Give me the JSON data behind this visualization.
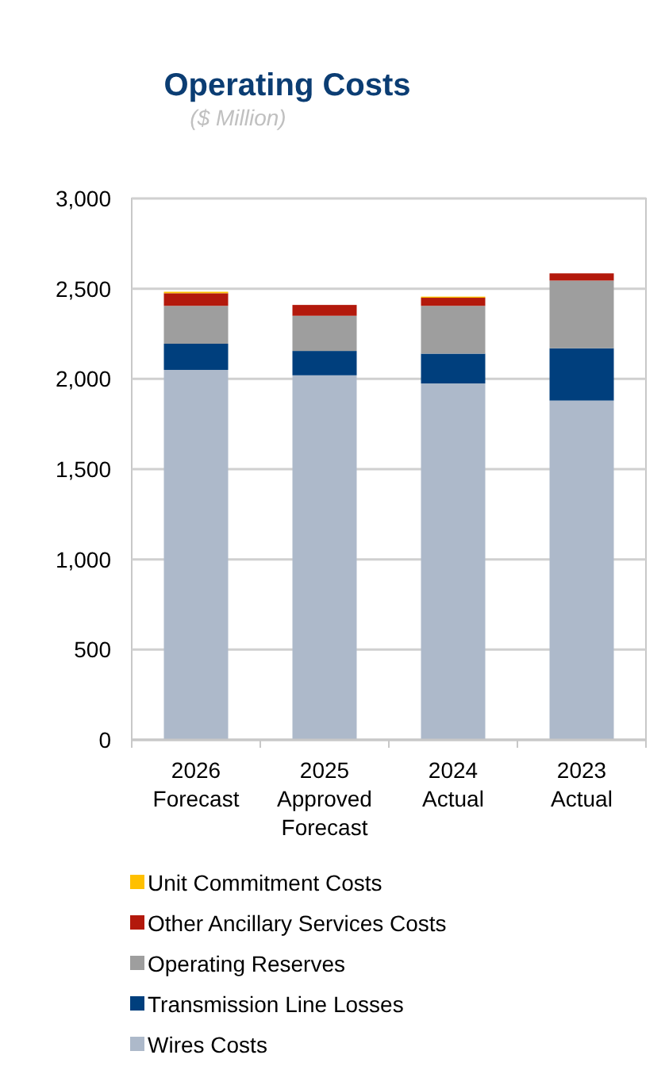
{
  "chart_data": {
    "type": "bar",
    "stacked": true,
    "title": "Operating Costs",
    "subtitle": "($ Million)",
    "categories": [
      "2026 Forecast",
      "2025 Approved Forecast",
      "2024 Actual",
      "2023 Actual"
    ],
    "series": [
      {
        "name": "Wires Costs",
        "color": "#adb9ca",
        "values": [
          2050,
          2020,
          1975,
          1880
        ]
      },
      {
        "name": "Transmission Line Losses",
        "color": "#003f7d",
        "values": [
          145,
          135,
          165,
          290
        ]
      },
      {
        "name": "Operating Reserves",
        "color": "#9e9e9e",
        "values": [
          210,
          195,
          265,
          375
        ]
      },
      {
        "name": "Other Ancillary Services Costs",
        "color": "#b3190c",
        "values": [
          70,
          60,
          45,
          40
        ]
      },
      {
        "name": "Unit Commitment Costs",
        "color": "#ffc000",
        "values": [
          8,
          0,
          6,
          0
        ]
      }
    ],
    "ylim": [
      0,
      3000
    ],
    "yticks": [
      0,
      {
        "value": 500,
        "label": "500"
      },
      {
        "value": 1000,
        "label": "1,000"
      },
      {
        "value": 1500,
        "label": "1,500"
      },
      {
        "value": 2000,
        "label": "2,000"
      },
      {
        "value": 2500,
        "label": "2,500"
      },
      {
        "value": 3000,
        "label": "3,000"
      }
    ],
    "grid": "y",
    "legend": "bottom"
  }
}
